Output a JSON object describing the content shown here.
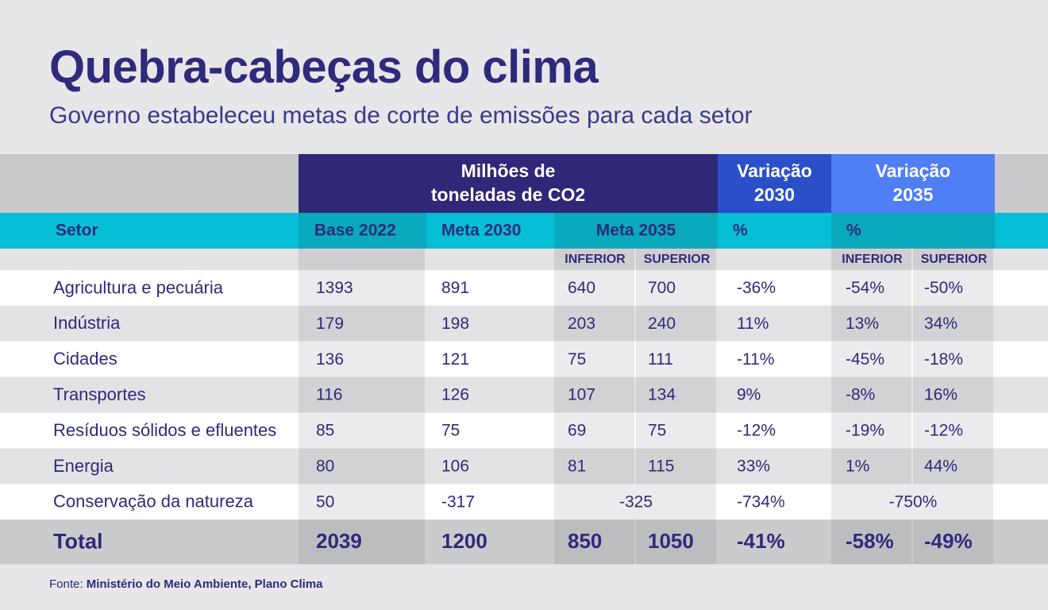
{
  "title": "Quebra-cabeças do clima",
  "subtitle": "Governo estabeleceu metas de corte de emissões para cada setor",
  "source": {
    "label": "Fonte:",
    "text": "Ministério do Meio Ambiente, Plano Clima"
  },
  "colors": {
    "dark_header": "#2f2778",
    "var2030_header": "#2b4fc9",
    "var2035_header": "#4f7ef5",
    "teal_band": "#06bfd6",
    "teal_band_dark": "#09a9bd",
    "text": "#2f2a7c"
  },
  "chart_data": {
    "type": "table",
    "header_groups": [
      {
        "label": [
          "Milhões de",
          "toneladas de CO2"
        ]
      },
      {
        "label": [
          "Variação",
          "2030"
        ]
      },
      {
        "label": [
          "Variação",
          "2035"
        ]
      }
    ],
    "columns": [
      "Setor",
      "Base 2022",
      "Meta 2030",
      "Meta 2035",
      "%",
      "%"
    ],
    "subcolumns": [
      "INFERIOR",
      "SUPERIOR",
      "INFERIOR",
      "SUPERIOR"
    ],
    "rows": [
      {
        "setor": "Agricultura e pecuária",
        "values": [
          "1393",
          "891",
          "640",
          "700",
          "-36%",
          "-54%",
          "-50%"
        ]
      },
      {
        "setor": "Indústria",
        "values": [
          "179",
          "198",
          "203",
          "240",
          "11%",
          "13%",
          "34%"
        ]
      },
      {
        "setor": "Cidades",
        "values": [
          "136",
          "121",
          "75",
          "111",
          "-11%",
          "-45%",
          "-18%"
        ]
      },
      {
        "setor": "Transportes",
        "values": [
          "116",
          "126",
          "107",
          "134",
          "9%",
          "-8%",
          "16%"
        ]
      },
      {
        "setor": "Resíduos sólidos e efluentes",
        "values": [
          "85",
          "75",
          "69",
          "75",
          "-12%",
          "-19%",
          "-12%"
        ]
      },
      {
        "setor": "Energia",
        "values": [
          "80",
          "106",
          "81",
          "115",
          "33%",
          "1%",
          "44%"
        ]
      },
      {
        "setor": "Conservação da natureza",
        "values": [
          "50",
          "-317",
          "-325",
          "-325",
          "-734%",
          "-750%",
          "-750%"
        ],
        "merged": [
          false,
          false,
          true,
          false,
          true
        ]
      }
    ],
    "total": {
      "setor": "Total",
      "values": [
        "2039",
        "1200",
        "850",
        "1050",
        "-41%",
        "-58%",
        "-49%"
      ]
    }
  }
}
